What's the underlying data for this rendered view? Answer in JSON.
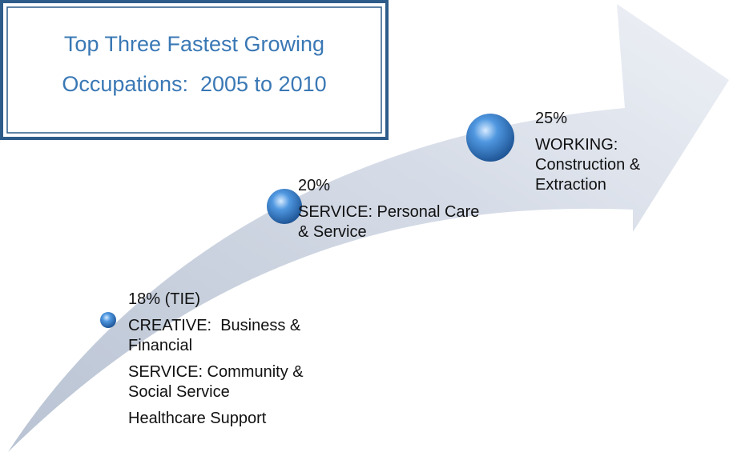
{
  "title": [
    "Top Three Fastest Growing",
    "Occupations:  2005 to 2010"
  ],
  "nodes": [
    {
      "value": "18% (TIE)",
      "items": [
        "CREATIVE:  Business & Financial",
        "SERVICE: Community & Social Service",
        "Healthcare Support"
      ]
    },
    {
      "value": "20%",
      "items": [
        "SERVICE: Personal Care & Service"
      ]
    },
    {
      "value": "25%",
      "items": [
        "WORKING: Construction & Extraction"
      ]
    }
  ]
}
